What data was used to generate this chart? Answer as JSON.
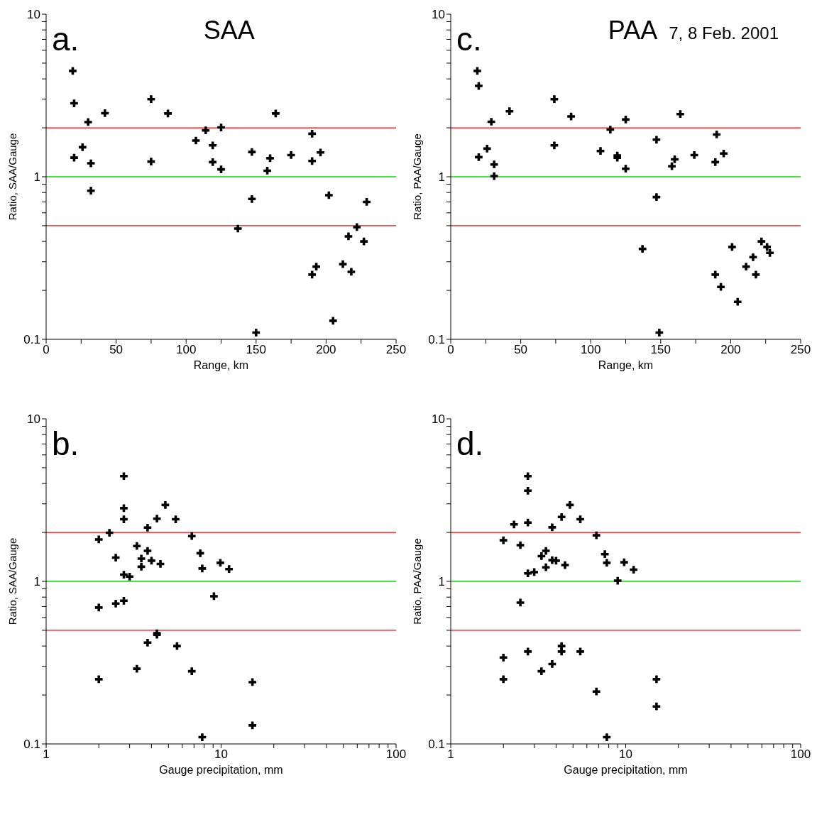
{
  "chart_data": [
    {
      "type": "scatter",
      "title": "SAA",
      "xlabel": "Range, km",
      "ylabel": "Ratio, SAA/Gauge",
      "annotations": [
        "a."
      ],
      "log": "y",
      "marker": "cross",
      "xlim": [
        0,
        250
      ],
      "ylim": [
        0.1,
        10
      ],
      "xticks": [
        0,
        {
          "value": 25,
          "label": null
        },
        50,
        {
          "value": 75,
          "label": null
        },
        100,
        {
          "value": 125,
          "label": null
        },
        150,
        {
          "value": 175,
          "label": null
        },
        200,
        {
          "value": 225,
          "label": null
        },
        250
      ],
      "yticks": [
        0.1,
        {
          "value": 0.2,
          "label": null
        },
        {
          "value": 0.3,
          "label": null
        },
        {
          "value": 0.4,
          "label": null
        },
        {
          "value": 0.5,
          "label": null
        },
        {
          "value": 0.6,
          "label": null
        },
        {
          "value": 0.7,
          "label": null
        },
        {
          "value": 0.8,
          "label": null
        },
        {
          "value": 0.9,
          "label": null
        },
        1,
        {
          "value": 2,
          "label": null
        },
        {
          "value": 3,
          "label": null
        },
        {
          "value": 4,
          "label": null
        },
        {
          "value": 5,
          "label": null
        },
        {
          "value": 6,
          "label": null
        },
        {
          "value": 7,
          "label": null
        },
        {
          "value": 8,
          "label": null
        },
        {
          "value": 9,
          "label": null
        },
        10
      ],
      "ref_lines": [
        {
          "axis": "y",
          "value": 2,
          "color": "#ff0000"
        },
        {
          "axis": "y",
          "value": 1,
          "color": "#00dd00"
        },
        {
          "axis": "y",
          "value": 0.5,
          "color": "#ff0000"
        }
      ],
      "series": [
        {
          "color": "#000000",
          "x": [
            19,
            20,
            42,
            30,
            26,
            20,
            32,
            32,
            75,
            75,
            87,
            107,
            114,
            119,
            119,
            125,
            125,
            147,
            147,
            137,
            150,
            160,
            158,
            164,
            175,
            190,
            190,
            196,
            202,
            229,
            222,
            216,
            227,
            212,
            218,
            190,
            193,
            205
          ],
          "values": [
            4.48,
            2.83,
            2.46,
            2.17,
            1.52,
            1.31,
            1.21,
            0.82,
            3.0,
            1.24,
            2.45,
            1.67,
            1.93,
            1.56,
            1.23,
            2.01,
            1.11,
            1.42,
            0.73,
            0.48,
            0.11,
            1.3,
            1.09,
            2.45,
            1.36,
            1.84,
            1.25,
            1.41,
            0.77,
            0.7,
            0.49,
            0.43,
            0.4,
            0.29,
            0.26,
            0.25,
            0.28,
            0.13
          ]
        }
      ]
    },
    {
      "type": "scatter",
      "title": "PAA",
      "subtitle": "7, 8 Feb. 2001",
      "xlabel": "Range, km",
      "ylabel": "Ratio, PAA/Gauge",
      "annotations": [
        "c."
      ],
      "log": "y",
      "marker": "cross",
      "xlim": [
        0,
        250
      ],
      "ylim": [
        0.1,
        10
      ],
      "xticks": [
        0,
        {
          "value": 25,
          "label": null
        },
        50,
        {
          "value": 75,
          "label": null
        },
        100,
        {
          "value": 125,
          "label": null
        },
        150,
        {
          "value": 175,
          "label": null
        },
        200,
        {
          "value": 225,
          "label": null
        },
        250
      ],
      "yticks": [
        0.1,
        {
          "value": 0.2,
          "label": null
        },
        {
          "value": 0.3,
          "label": null
        },
        {
          "value": 0.4,
          "label": null
        },
        {
          "value": 0.5,
          "label": null
        },
        {
          "value": 0.6,
          "label": null
        },
        {
          "value": 0.7,
          "label": null
        },
        {
          "value": 0.8,
          "label": null
        },
        {
          "value": 0.9,
          "label": null
        },
        1,
        {
          "value": 2,
          "label": null
        },
        {
          "value": 3,
          "label": null
        },
        {
          "value": 4,
          "label": null
        },
        {
          "value": 5,
          "label": null
        },
        {
          "value": 6,
          "label": null
        },
        {
          "value": 7,
          "label": null
        },
        {
          "value": 8,
          "label": null
        },
        {
          "value": 9,
          "label": null
        },
        10
      ],
      "ref_lines": [
        {
          "axis": "y",
          "value": 2,
          "color": "#ff0000"
        },
        {
          "axis": "y",
          "value": 1,
          "color": "#00dd00"
        },
        {
          "axis": "y",
          "value": 0.5,
          "color": "#ff0000"
        }
      ],
      "series": [
        {
          "color": "#000000",
          "x": [
            19,
            20,
            29,
            42,
            26,
            20,
            31,
            31,
            74,
            74,
            86,
            107,
            114,
            119,
            119,
            125,
            125,
            147,
            147,
            137,
            149,
            160,
            158,
            164,
            174,
            190,
            189,
            195,
            201,
            222,
            226,
            228,
            216,
            211,
            218,
            189,
            193,
            205
          ],
          "values": [
            4.48,
            3.62,
            2.18,
            2.53,
            1.49,
            1.32,
            1.19,
            1.01,
            3.0,
            1.56,
            2.35,
            1.44,
            1.95,
            1.35,
            1.31,
            2.25,
            1.12,
            1.69,
            0.75,
            0.36,
            0.11,
            1.28,
            1.16,
            2.43,
            1.36,
            1.82,
            1.23,
            1.39,
            0.37,
            0.4,
            0.37,
            0.34,
            0.32,
            0.28,
            0.25,
            0.25,
            0.21,
            0.17
          ]
        }
      ]
    },
    {
      "type": "scatter",
      "xlabel": "Gauge precipitation, mm",
      "ylabel": "Ratio, SAA/Gauge",
      "annotations": [
        "b."
      ],
      "log": "xy",
      "marker": "cross",
      "xlim": [
        1,
        100
      ],
      "ylim": [
        0.1,
        10
      ],
      "xticks": [
        1,
        {
          "value": 2,
          "label": null
        },
        {
          "value": 3,
          "label": null
        },
        {
          "value": 4,
          "label": null
        },
        {
          "value": 5,
          "label": null
        },
        {
          "value": 6,
          "label": null
        },
        {
          "value": 7,
          "label": null
        },
        {
          "value": 8,
          "label": null
        },
        {
          "value": 9,
          "label": null
        },
        10,
        {
          "value": 20,
          "label": null
        },
        {
          "value": 30,
          "label": null
        },
        {
          "value": 40,
          "label": null
        },
        {
          "value": 50,
          "label": null
        },
        {
          "value": 60,
          "label": null
        },
        {
          "value": 70,
          "label": null
        },
        {
          "value": 80,
          "label": null
        },
        {
          "value": 90,
          "label": null
        },
        100
      ],
      "yticks": [
        0.1,
        {
          "value": 0.2,
          "label": null
        },
        {
          "value": 0.3,
          "label": null
        },
        {
          "value": 0.4,
          "label": null
        },
        {
          "value": 0.5,
          "label": null
        },
        {
          "value": 0.6,
          "label": null
        },
        {
          "value": 0.7,
          "label": null
        },
        {
          "value": 0.8,
          "label": null
        },
        {
          "value": 0.9,
          "label": null
        },
        1,
        {
          "value": 2,
          "label": null
        },
        {
          "value": 3,
          "label": null
        },
        {
          "value": 4,
          "label": null
        },
        {
          "value": 5,
          "label": null
        },
        {
          "value": 6,
          "label": null
        },
        {
          "value": 7,
          "label": null
        },
        {
          "value": 8,
          "label": null
        },
        {
          "value": 9,
          "label": null
        },
        10
      ],
      "ref_lines": [
        {
          "axis": "y",
          "value": 2,
          "color": "#ff0000"
        },
        {
          "axis": "y",
          "value": 1,
          "color": "#00dd00"
        },
        {
          "axis": "y",
          "value": 0.5,
          "color": "#ff0000"
        }
      ],
      "series": [
        {
          "color": "#000000",
          "x": [
            2.78,
            2.78,
            2.78,
            4.8,
            4.3,
            5.5,
            3.8,
            2.3,
            2.0,
            6.8,
            3.3,
            3.8,
            2.5,
            3.5,
            3.5,
            4.0,
            4.5,
            7.6,
            7.8,
            9.9,
            11.1,
            2.78,
            3.0,
            9.1,
            2.78,
            2.5,
            2.0,
            4.3,
            4.3,
            3.8,
            5.6,
            3.3,
            6.8,
            2.0,
            15.1,
            15.1,
            7.8
          ],
          "values": [
            4.44,
            2.82,
            2.41,
            2.95,
            2.43,
            2.41,
            2.14,
            1.99,
            1.81,
            1.9,
            1.65,
            1.54,
            1.4,
            1.38,
            1.23,
            1.34,
            1.28,
            1.49,
            1.2,
            1.3,
            1.19,
            1.1,
            1.07,
            0.81,
            0.76,
            0.73,
            0.69,
            0.48,
            0.47,
            0.42,
            0.4,
            0.29,
            0.28,
            0.25,
            0.24,
            0.13,
            0.11
          ]
        }
      ]
    },
    {
      "type": "scatter",
      "xlabel": "Gauge precipitation, mm",
      "ylabel": "Ratio, PAA/Gauge",
      "annotations": [
        "d."
      ],
      "log": "xy",
      "marker": "cross",
      "xlim": [
        1,
        100
      ],
      "ylim": [
        0.1,
        10
      ],
      "xticks": [
        1,
        {
          "value": 2,
          "label": null
        },
        {
          "value": 3,
          "label": null
        },
        {
          "value": 4,
          "label": null
        },
        {
          "value": 5,
          "label": null
        },
        {
          "value": 6,
          "label": null
        },
        {
          "value": 7,
          "label": null
        },
        {
          "value": 8,
          "label": null
        },
        {
          "value": 9,
          "label": null
        },
        10,
        {
          "value": 20,
          "label": null
        },
        {
          "value": 30,
          "label": null
        },
        {
          "value": 40,
          "label": null
        },
        {
          "value": 50,
          "label": null
        },
        {
          "value": 60,
          "label": null
        },
        {
          "value": 70,
          "label": null
        },
        {
          "value": 80,
          "label": null
        },
        {
          "value": 90,
          "label": null
        },
        100
      ],
      "yticks": [
        0.1,
        {
          "value": 0.2,
          "label": null
        },
        {
          "value": 0.3,
          "label": null
        },
        {
          "value": 0.4,
          "label": null
        },
        {
          "value": 0.5,
          "label": null
        },
        {
          "value": 0.6,
          "label": null
        },
        {
          "value": 0.7,
          "label": null
        },
        {
          "value": 0.8,
          "label": null
        },
        {
          "value": 0.9,
          "label": null
        },
        1,
        {
          "value": 2,
          "label": null
        },
        {
          "value": 3,
          "label": null
        },
        {
          "value": 4,
          "label": null
        },
        {
          "value": 5,
          "label": null
        },
        {
          "value": 6,
          "label": null
        },
        {
          "value": 7,
          "label": null
        },
        {
          "value": 8,
          "label": null
        },
        {
          "value": 9,
          "label": null
        },
        10
      ],
      "ref_lines": [
        {
          "axis": "y",
          "value": 2,
          "color": "#ff0000"
        },
        {
          "axis": "y",
          "value": 1,
          "color": "#00dd00"
        },
        {
          "axis": "y",
          "value": 0.5,
          "color": "#ff0000"
        }
      ],
      "series": [
        {
          "color": "#000000",
          "x": [
            2.76,
            2.76,
            2.76,
            4.8,
            4.3,
            5.5,
            3.8,
            2.3,
            2.0,
            6.8,
            2.5,
            3.5,
            3.3,
            3.8,
            4.0,
            3.5,
            4.5,
            7.6,
            7.8,
            9.8,
            11.1,
            2.76,
            3.0,
            9.0,
            2.5,
            4.3,
            4.3,
            2.76,
            5.5,
            2.0,
            3.8,
            3.3,
            2.0,
            15.0,
            6.8,
            15.0,
            7.8
          ],
          "values": [
            4.44,
            3.61,
            2.3,
            2.95,
            2.49,
            2.41,
            2.15,
            2.24,
            1.79,
            1.92,
            1.67,
            1.54,
            1.43,
            1.35,
            1.34,
            1.22,
            1.26,
            1.47,
            1.3,
            1.31,
            1.18,
            1.12,
            1.14,
            1.01,
            0.74,
            0.4,
            0.37,
            0.37,
            0.37,
            0.34,
            0.31,
            0.28,
            0.25,
            0.25,
            0.21,
            0.17,
            0.11
          ]
        }
      ]
    }
  ]
}
